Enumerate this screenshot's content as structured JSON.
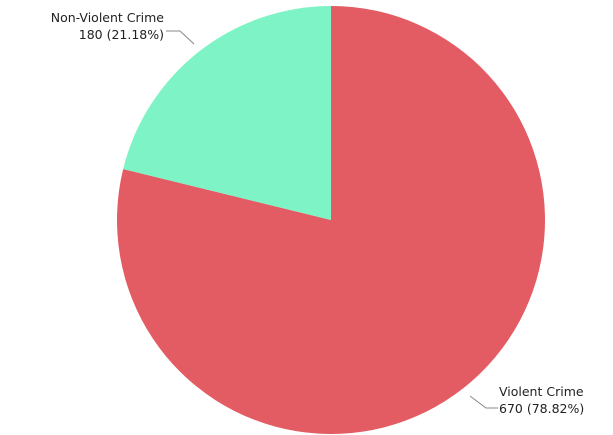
{
  "chart_data": {
    "type": "pie",
    "title": "",
    "start_angle_deg": 0,
    "direction": "clockwise",
    "slices": [
      {
        "label": "Violent Crime",
        "value": 670,
        "percent_label": "670 (78.82%)",
        "color": "#e35b63"
      },
      {
        "label": "Non-Violent Crime",
        "value": 180,
        "percent_label": "180 (21.18%)",
        "color": "#7ef3c5"
      }
    ],
    "legend": "none",
    "label_style": "outside-with-leader-lines"
  }
}
